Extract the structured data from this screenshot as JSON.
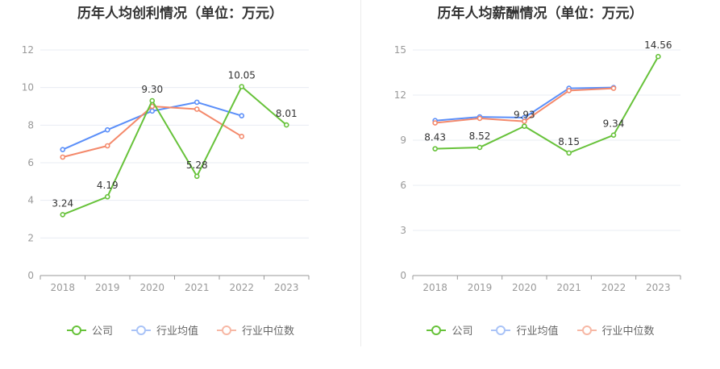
{
  "colors": {
    "company": "#67c23a",
    "avg": "#5b8ff9",
    "median": "#f4896b",
    "axis": "#999999",
    "grid": "#e8ecf3"
  },
  "legend": {
    "company": "公司",
    "avg": "行业均值",
    "median": "行业中位数"
  },
  "chart_data": [
    {
      "type": "line",
      "title": "历年人均创利情况（单位：万元）",
      "xlabel": "",
      "ylabel": "",
      "categories": [
        "2018",
        "2019",
        "2020",
        "2021",
        "2022",
        "2023"
      ],
      "ylim": [
        0,
        12
      ],
      "yticks": [
        0,
        2,
        4,
        6,
        8,
        10,
        12
      ],
      "grid": true,
      "legend_position": "bottom",
      "series": [
        {
          "name": "公司",
          "color": "#67c23a",
          "values": [
            3.24,
            4.19,
            9.3,
            5.28,
            10.05,
            8.01
          ],
          "labels": [
            "3.24",
            "4.19",
            "9.30",
            "5.28",
            "10.05",
            "8.01"
          ]
        },
        {
          "name": "行业均值",
          "color": "#5b8ff9",
          "values": [
            6.7,
            7.75,
            8.75,
            9.22,
            8.5,
            null
          ]
        },
        {
          "name": "行业中位数",
          "color": "#f4896b",
          "values": [
            6.3,
            6.9,
            9.0,
            8.85,
            7.4,
            null
          ]
        }
      ]
    },
    {
      "type": "line",
      "title": "历年人均薪酬情况（单位：万元）",
      "xlabel": "",
      "ylabel": "",
      "categories": [
        "2018",
        "2019",
        "2020",
        "2021",
        "2022",
        "2023"
      ],
      "ylim": [
        0,
        15
      ],
      "yticks": [
        0,
        3,
        6,
        9,
        12,
        15
      ],
      "grid": true,
      "legend_position": "bottom",
      "series": [
        {
          "name": "公司",
          "color": "#67c23a",
          "values": [
            8.43,
            8.52,
            9.93,
            8.15,
            9.34,
            14.56
          ],
          "labels": [
            "8.43",
            "8.52",
            "9.93",
            "8.15",
            "9.34",
            "14.56"
          ]
        },
        {
          "name": "行业均值",
          "color": "#5b8ff9",
          "values": [
            10.3,
            10.55,
            10.5,
            12.45,
            12.5,
            null
          ]
        },
        {
          "name": "行业中位数",
          "color": "#f4896b",
          "values": [
            10.15,
            10.45,
            10.25,
            12.3,
            12.45,
            null
          ]
        }
      ]
    }
  ]
}
